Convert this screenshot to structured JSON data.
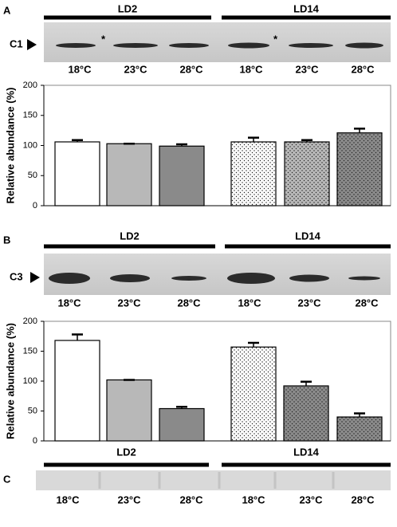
{
  "panels": [
    {
      "letter": "A",
      "groups": [
        "LD2",
        "LD14"
      ],
      "blot_label": "C1",
      "band_marks": [
        "*",
        "*"
      ],
      "temps": [
        "18°C",
        "23°C",
        "28°C",
        "18°C",
        "23°C",
        "28°C"
      ]
    },
    {
      "letter": "B",
      "groups": [
        "LD2",
        "LD14"
      ],
      "blot_label": "C3",
      "temps": [
        "18°C",
        "23°C",
        "28°C",
        "18°C",
        "23°C",
        "28°C"
      ]
    },
    {
      "letter": "C",
      "groups": [
        "LD2",
        "LD14"
      ],
      "temps": [
        "18°C",
        "23°C",
        "28°C",
        "18°C",
        "23°C",
        "28°C"
      ]
    }
  ],
  "chart_data": [
    {
      "type": "bar",
      "ylabel": "Relative abundance (%)",
      "categories": [
        null,
        null,
        null,
        null,
        null,
        null
      ],
      "values": [
        106,
        103,
        99,
        106,
        106,
        121
      ],
      "errors": [
        3,
        0,
        3,
        7,
        3,
        7
      ],
      "colors": [
        "#ffffff",
        "#b8b8b8",
        "#8a8a8a",
        "#ffffff",
        "#b8b8b8",
        "#8a8a8a"
      ],
      "dotted": [
        false,
        false,
        false,
        true,
        true,
        true
      ],
      "ylim": [
        0,
        200
      ],
      "yticks": [
        0,
        50,
        100,
        150,
        200
      ]
    },
    {
      "type": "bar",
      "ylabel": "Relative abundance (%)",
      "categories": [
        null,
        null,
        null,
        null,
        null,
        null
      ],
      "values": [
        168,
        102,
        54,
        157,
        92,
        40
      ],
      "errors": [
        10,
        0,
        3,
        7,
        7,
        6
      ],
      "colors": [
        "#ffffff",
        "#b8b8b8",
        "#8a8a8a",
        "#ffffff",
        "#8a8a8a",
        "#8a8a8a"
      ],
      "dotted": [
        false,
        false,
        false,
        true,
        true,
        true
      ],
      "ylim": [
        0,
        200
      ],
      "yticks": [
        0,
        50,
        100,
        150,
        200
      ]
    }
  ]
}
